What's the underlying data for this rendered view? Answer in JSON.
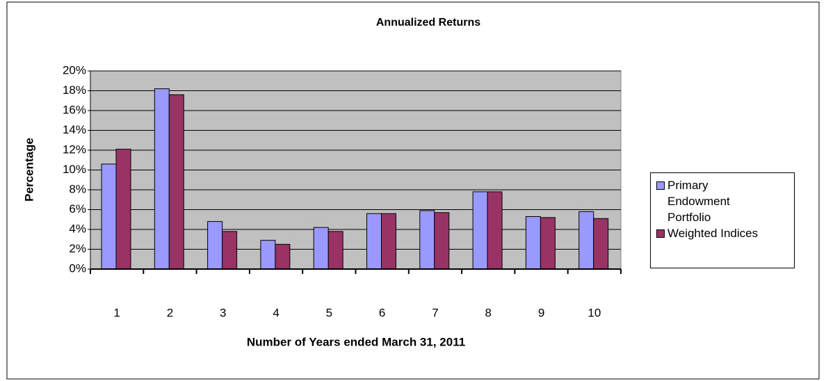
{
  "chart_data": {
    "type": "bar",
    "title": "Annualized Returns",
    "x_label": "Number of Years ended March 31, 2011",
    "y_label": "Percentage",
    "categories": [
      "1",
      "2",
      "3",
      "4",
      "5",
      "6",
      "7",
      "8",
      "9",
      "10"
    ],
    "series": [
      {
        "name": "Primary Endowment Portfolio",
        "color": "#9999ff",
        "values": [
          10.6,
          18.2,
          4.8,
          2.9,
          4.2,
          5.6,
          5.9,
          7.8,
          5.3,
          5.8
        ]
      },
      {
        "name": "Weighted Indices",
        "color": "#993366",
        "values": [
          12.1,
          17.6,
          3.8,
          2.5,
          3.8,
          5.6,
          5.7,
          7.8,
          5.2,
          5.1
        ]
      }
    ],
    "ylim": [
      0,
      20
    ],
    "yticks": [
      {
        "value": 0,
        "label": "0%"
      },
      {
        "value": 2,
        "label": "2%"
      },
      {
        "value": 4,
        "label": "4%"
      },
      {
        "value": 6,
        "label": "6%"
      },
      {
        "value": 8,
        "label": "8%"
      },
      {
        "value": 10,
        "label": "10%"
      },
      {
        "value": 12,
        "label": "12%"
      },
      {
        "value": 14,
        "label": "14%"
      },
      {
        "value": 16,
        "label": "16%"
      },
      {
        "value": 18,
        "label": "18%"
      },
      {
        "value": 20,
        "label": "20%"
      }
    ],
    "grid": true,
    "legend": "right"
  }
}
